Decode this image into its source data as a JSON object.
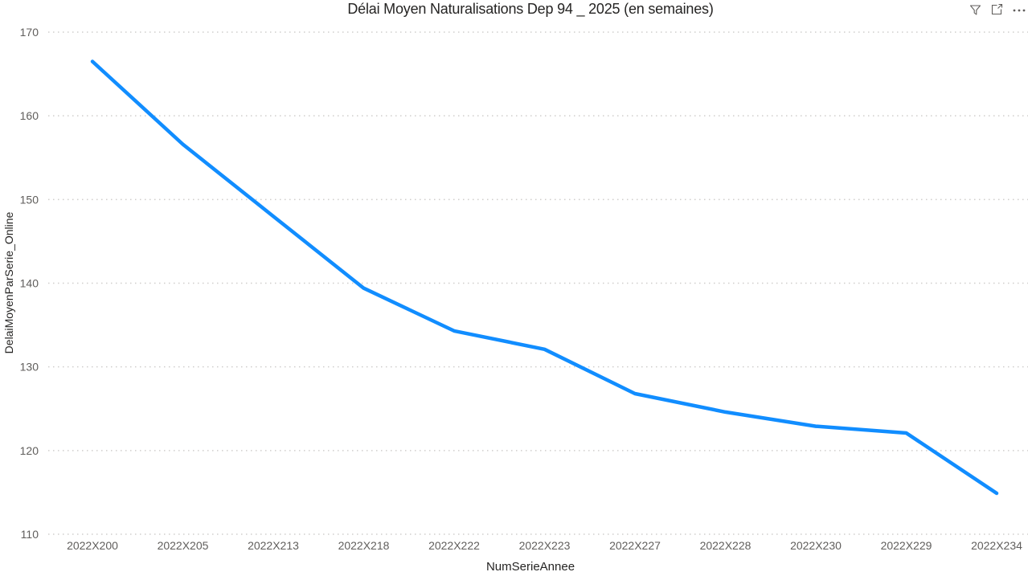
{
  "header": {
    "title": "Délai Moyen Naturalisations Dep 94 _ 2025 (en semaines)"
  },
  "toolbar": {
    "filter_icon": "filter-funnel",
    "focus_icon": "open-in-focus-mode",
    "more_icon": "more-options-ellipsis",
    "icon_color": "#605E5C"
  },
  "chart_data": {
    "type": "line",
    "title": "Délai Moyen Naturalisations Dep 94 _ 2025 (en semaines)",
    "xlabel": "NumSerieAnnee",
    "ylabel": "DelaiMoyenParSerie_Online",
    "categories": [
      "2022X200",
      "2022X205",
      "2022X213",
      "2022X218",
      "2022X222",
      "2022X223",
      "2022X227",
      "2022X228",
      "2022X230",
      "2022X229",
      "2022X234"
    ],
    "values": [
      166.5,
      156.6,
      148.0,
      139.4,
      134.3,
      132.1,
      126.8,
      124.6,
      122.9,
      122.1,
      114.9
    ],
    "ylim": [
      110,
      170
    ],
    "yticks": [
      110,
      120,
      130,
      140,
      150,
      160,
      170
    ],
    "grid": "dotted-horizontal",
    "legend": "none",
    "line_color": "#118DFF",
    "gridline_color": "#cfcdcb",
    "tick_color": "#605E5C",
    "axis_title_color": "#252423"
  }
}
